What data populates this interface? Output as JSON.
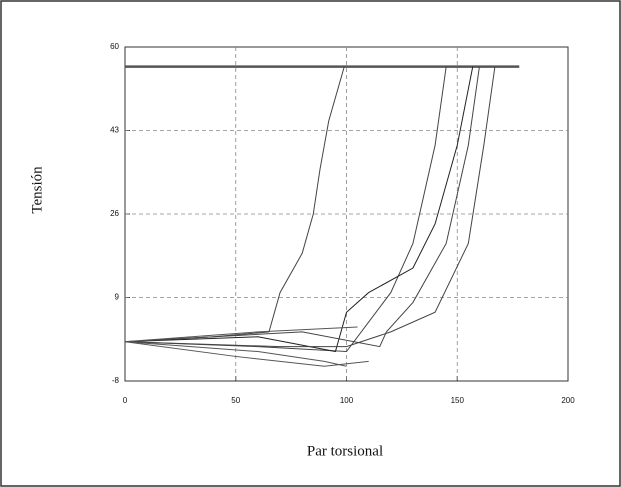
{
  "chart_data": {
    "type": "line",
    "x_label": "Par torsional",
    "y_label": "Tensión",
    "xlim": [
      0,
      200
    ],
    "ylim": [
      -8,
      60
    ],
    "xticks": [
      0,
      50,
      100,
      150,
      200
    ],
    "yticks": [
      -8,
      9,
      26,
      43,
      60
    ],
    "grid": true,
    "series": [
      {
        "color": "#555555",
        "x": [
          0,
          178
        ],
        "values": [
          56,
          56
        ]
      },
      {
        "color": "#444444",
        "x": [
          0,
          40,
          65,
          70,
          80,
          85,
          88,
          92,
          99
        ],
        "values": [
          0,
          1,
          2,
          10,
          18,
          26,
          35,
          45,
          56
        ]
      },
      {
        "color": "#444444",
        "x": [
          0,
          60,
          100,
          110,
          120,
          130,
          140,
          145
        ],
        "values": [
          0,
          -1,
          -2,
          4,
          10,
          20,
          40,
          56
        ]
      },
      {
        "color": "#222222",
        "x": [
          0,
          60,
          95,
          100,
          110,
          130,
          140,
          150,
          157
        ],
        "values": [
          0,
          1,
          -2,
          6,
          10,
          15,
          24,
          40,
          56
        ]
      },
      {
        "color": "#444444",
        "x": [
          0,
          80,
          115,
          118,
          130,
          145,
          155,
          160
        ],
        "values": [
          0,
          2,
          -1,
          2,
          8,
          20,
          40,
          56
        ]
      },
      {
        "color": "#444444",
        "x": [
          0,
          70,
          100,
          120,
          140,
          155,
          162,
          167
        ],
        "values": [
          0,
          -1,
          -1,
          2,
          6,
          20,
          40,
          56
        ]
      },
      {
        "color": "#555555",
        "x": [
          0,
          60,
          90,
          100
        ],
        "values": [
          0,
          -2,
          -4,
          -5
        ]
      },
      {
        "color": "#555555",
        "x": [
          0,
          50,
          90,
          110
        ],
        "values": [
          0,
          -3,
          -5,
          -4
        ]
      },
      {
        "color": "#555555",
        "x": [
          0,
          60,
          105
        ],
        "values": [
          0,
          2,
          3
        ]
      }
    ]
  }
}
